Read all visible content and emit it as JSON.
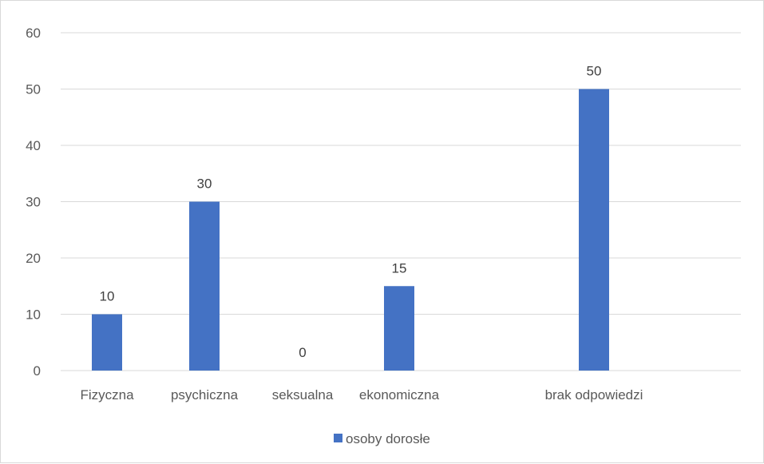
{
  "chart_data": {
    "type": "bar",
    "categories": [
      "Fizyczna",
      "psychiczna",
      "seksualna",
      "ekonomiczna",
      "brak odpowiedzi"
    ],
    "series": [
      {
        "name": "osoby dorosłe",
        "values": [
          10,
          30,
          0,
          15,
          50
        ],
        "color": "#4472c4"
      }
    ],
    "ylim": [
      0,
      60
    ],
    "yticks": [
      0,
      10,
      20,
      30,
      40,
      50,
      60
    ],
    "grid": true,
    "legend_position": "bottom",
    "data_labels": true
  }
}
